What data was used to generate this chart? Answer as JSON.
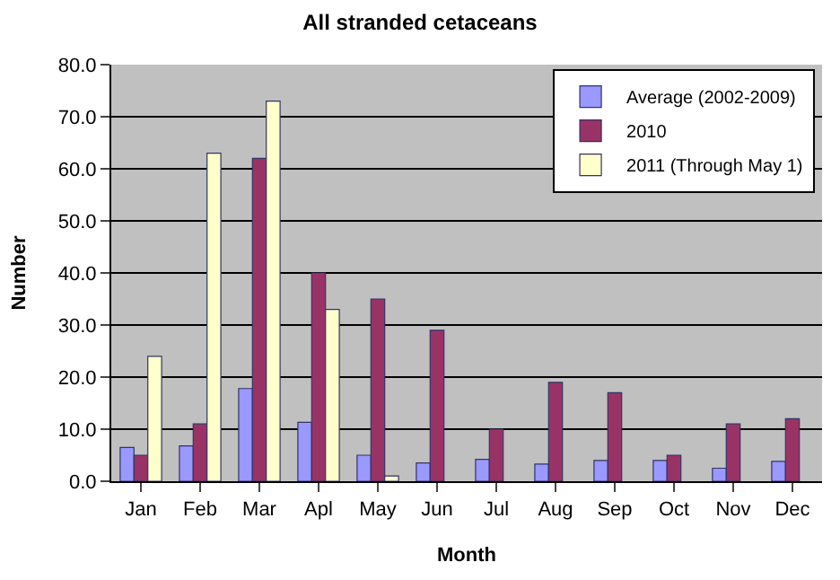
{
  "chart_data": {
    "type": "bar",
    "title": "All stranded cetaceans",
    "xlabel": "Month",
    "ylabel": "Number",
    "categories": [
      "Jan",
      "Feb",
      "Mar",
      "Apl",
      "May",
      "Jun",
      "Jul",
      "Aug",
      "Sep",
      "Oct",
      "Nov",
      "Dec"
    ],
    "series": [
      {
        "name": "Average (2002-2009)",
        "color": "#9999ff",
        "values": [
          6.5,
          6.8,
          17.8,
          11.3,
          5,
          3.5,
          4.2,
          3.3,
          4,
          4,
          2.5,
          3.8
        ]
      },
      {
        "name": "2010",
        "color": "#993366",
        "values": [
          5,
          11,
          62,
          40,
          35,
          29,
          10,
          19,
          17,
          5,
          11,
          12
        ]
      },
      {
        "name": "2011 (Through May 1)",
        "color": "#ffffcc",
        "values": [
          24,
          63,
          73,
          33,
          1,
          null,
          null,
          null,
          null,
          null,
          null,
          null
        ]
      }
    ],
    "ylim": [
      0,
      80
    ],
    "yticks": [
      {
        "value": 0,
        "label": "0.0"
      },
      {
        "value": 10,
        "label": "10.0"
      },
      {
        "value": 20,
        "label": "20.0"
      },
      {
        "value": 30,
        "label": "30.0"
      },
      {
        "value": 40,
        "label": "40.0"
      },
      {
        "value": 50,
        "label": "50.0"
      },
      {
        "value": 60,
        "label": "60.0"
      },
      {
        "value": 70,
        "label": "70.0"
      },
      {
        "value": 80,
        "label": "80.0"
      }
    ],
    "grid": "y",
    "legend": "top right"
  }
}
